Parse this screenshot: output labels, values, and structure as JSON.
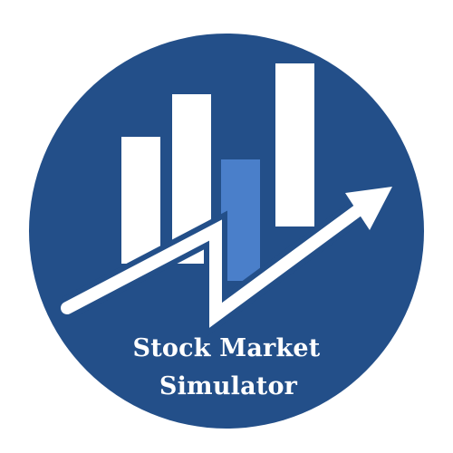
{
  "logo": {
    "title_line1": "Stock Market",
    "title_line2": "Simulator",
    "icon": "bar-chart-trend-arrow-icon",
    "colors": {
      "background": "#ffffff",
      "circle": "#234f89",
      "bars": "#ffffff",
      "highlight_bar": "#4a7fca",
      "arrow": "#ffffff",
      "text": "#ffffff"
    }
  }
}
